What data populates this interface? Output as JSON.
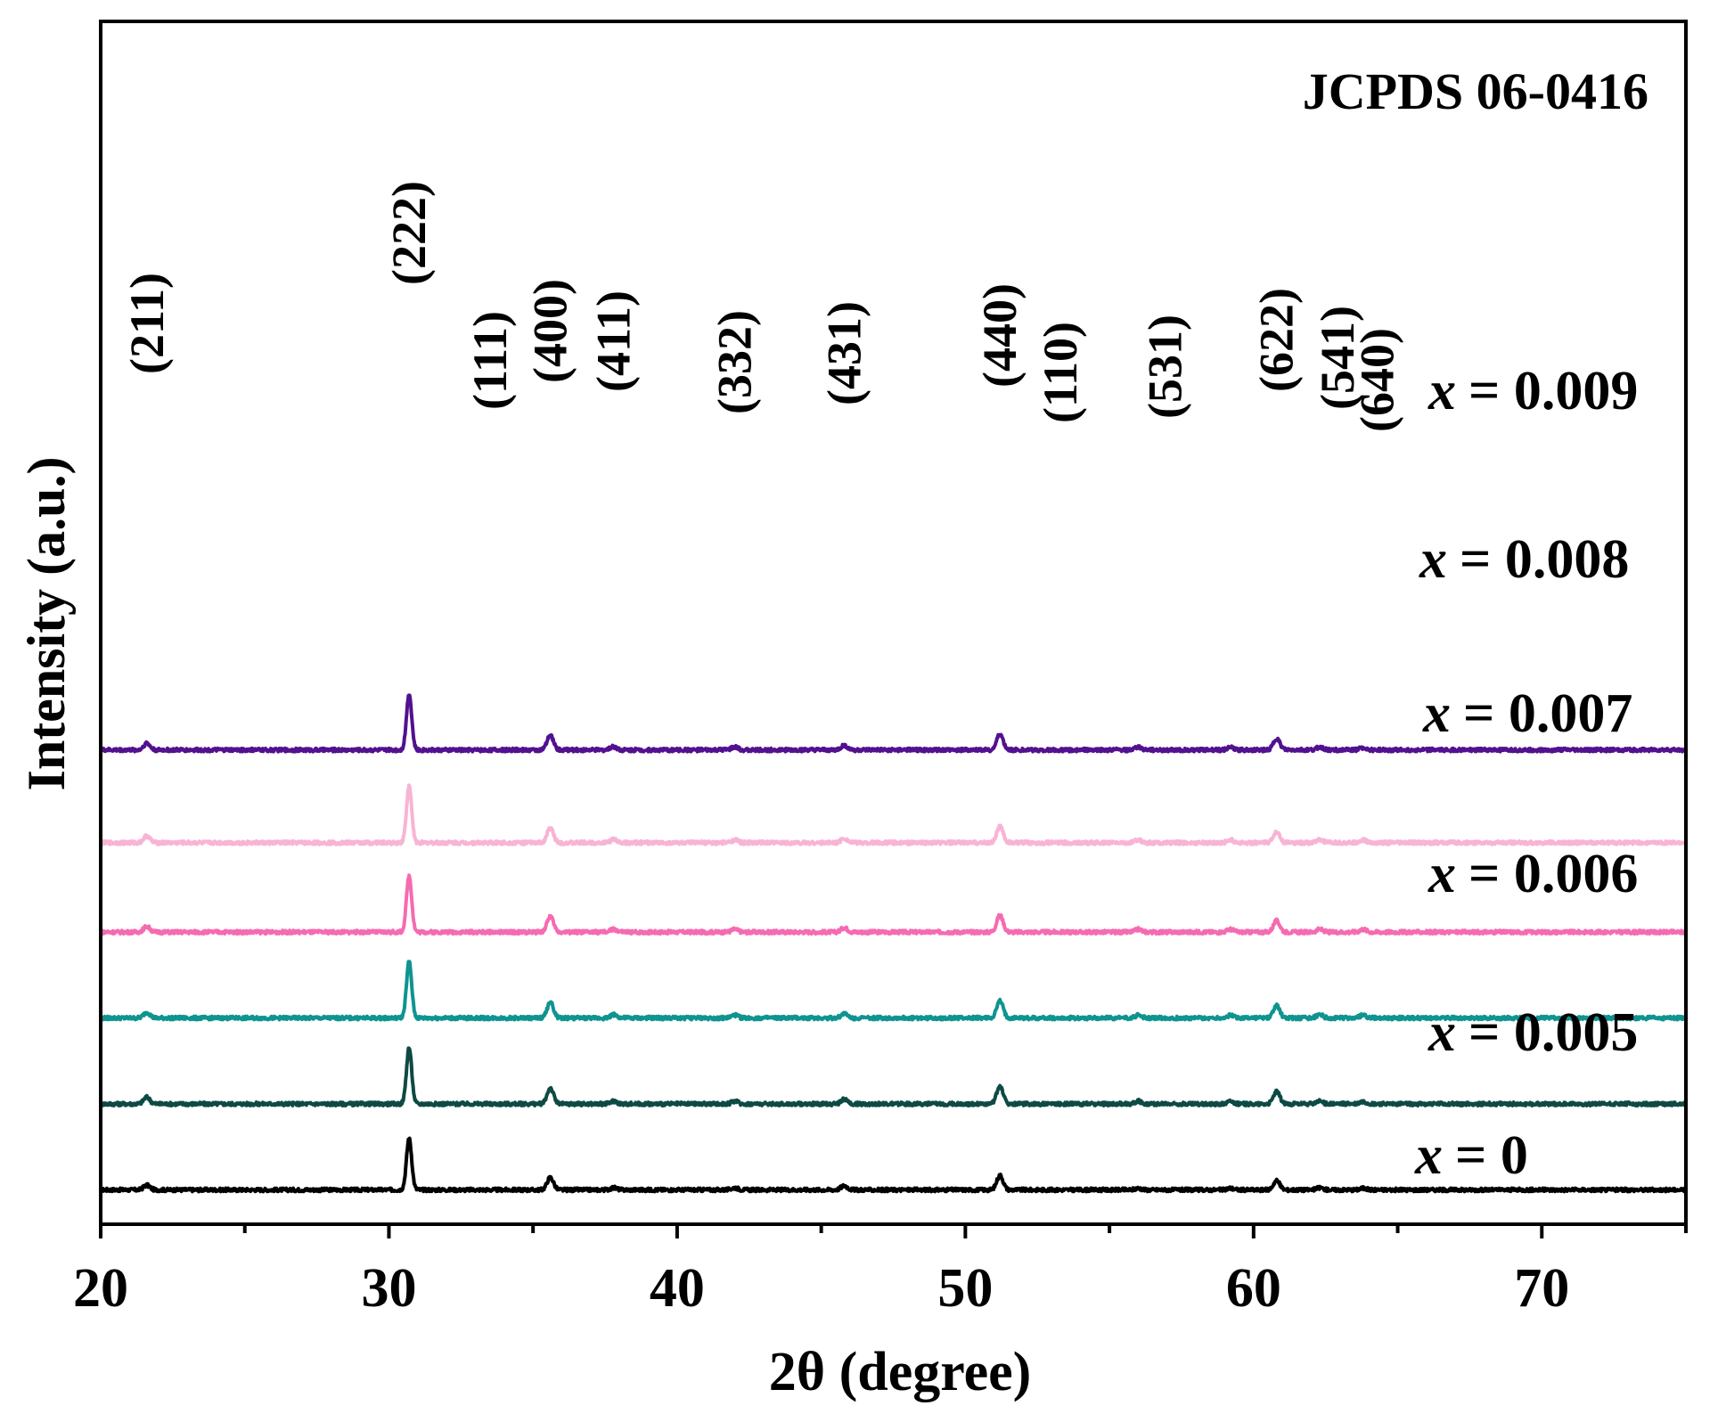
{
  "chart_data": {
    "type": "line",
    "title": "",
    "xlabel": "2θ (degree)",
    "ylabel": "Intensity (a.u.)",
    "reference_label": "JCPDS 06-0416",
    "xlim": [
      20,
      75
    ],
    "x_ticks": [
      20,
      30,
      40,
      50,
      60,
      70
    ],
    "x_tick_labels": [
      "20",
      "30",
      "40",
      "50",
      "60",
      "70"
    ],
    "grid": false,
    "legend": "labels at right end of each trace",
    "peaks": [
      {
        "hkl": "(211)",
        "x": 21.6
      },
      {
        "hkl": "(222)",
        "x": 30.7
      },
      {
        "hkl": "(111)",
        "x": 33.2
      },
      {
        "hkl": "(400)",
        "x": 35.6
      },
      {
        "hkl": "(411)",
        "x": 37.8
      },
      {
        "hkl": "(332)",
        "x": 42.0
      },
      {
        "hkl": "(431)",
        "x": 45.8
      },
      {
        "hkl": "(440)",
        "x": 51.2
      },
      {
        "hkl": "(110)",
        "x": 52.8
      },
      {
        "hkl": "(531)",
        "x": 56.0
      },
      {
        "hkl": "(622)",
        "x": 60.8
      },
      {
        "hkl": "(541)",
        "x": 62.3
      },
      {
        "hkl": "(640)",
        "x": 63.8
      }
    ],
    "series": [
      {
        "name": "x = 0",
        "x_symbol": "x",
        "value_text": "= 0",
        "color": "#000000",
        "baseline": 5,
        "peak_x": [
          21.6,
          30.7,
          35.6,
          37.8,
          42.0,
          45.8,
          51.2,
          56.0,
          59.2,
          60.8,
          62.3,
          63.8
        ],
        "peak_heights": [
          9,
          100,
          24,
          4,
          4,
          8,
          28,
          3,
          3,
          18,
          4,
          3
        ]
      },
      {
        "name": "x = 0.005",
        "x_symbol": "x",
        "value_text": "= 0.005",
        "color": "#0e4a44",
        "baseline": 17.5,
        "peak_x": [
          21.6,
          30.7,
          35.6,
          37.8,
          42.0,
          45.8,
          51.2,
          56.0,
          59.2,
          60.8,
          62.3,
          63.8
        ],
        "peak_heights": [
          12,
          100,
          28,
          5,
          5,
          8,
          32,
          5,
          5,
          22,
          5,
          4
        ]
      },
      {
        "name": "x = 0.006",
        "x_symbol": "x",
        "value_text": "= 0.006",
        "color": "#0f9490",
        "baseline": 30,
        "peak_x": [
          21.6,
          30.7,
          35.6,
          37.8,
          42.0,
          45.8,
          51.2,
          56.0,
          59.2,
          60.8,
          62.3,
          63.8
        ],
        "peak_heights": [
          10,
          100,
          28,
          6,
          5,
          8,
          30,
          5,
          5,
          22,
          6,
          5
        ]
      },
      {
        "name": "x = 0.007",
        "x_symbol": "x",
        "value_text": "= 0.007",
        "color": "#f56bb2",
        "baseline": 42.5,
        "peak_x": [
          21.6,
          30.7,
          35.6,
          37.8,
          42.0,
          45.8,
          51.2,
          56.0,
          59.2,
          60.8,
          62.3,
          63.8
        ],
        "peak_heights": [
          10,
          100,
          28,
          5,
          5,
          8,
          30,
          5,
          5,
          20,
          5,
          5
        ]
      },
      {
        "name": "x = 0.008",
        "x_symbol": "x",
        "value_text": "= 0.008",
        "color": "#f8b4d4",
        "baseline": 55.5,
        "peak_x": [
          21.6,
          30.7,
          35.6,
          37.8,
          42.0,
          45.8,
          51.2,
          56.0,
          59.2,
          60.8,
          62.3,
          63.8
        ],
        "peak_heights": [
          12,
          100,
          26,
          6,
          5,
          8,
          29,
          5,
          5,
          20,
          5,
          5
        ]
      },
      {
        "name": "x = 0.009",
        "x_symbol": "x",
        "value_text": "= 0.009",
        "color": "#52118f",
        "baseline": 69,
        "peak_x": [
          21.6,
          30.7,
          35.6,
          37.8,
          42.0,
          45.8,
          51.2,
          56.0,
          59.2,
          60.8,
          62.3,
          63.8
        ],
        "peak_heights": [
          12,
          100,
          26,
          6,
          5,
          8,
          28,
          5,
          5,
          20,
          5,
          4
        ]
      }
    ]
  }
}
